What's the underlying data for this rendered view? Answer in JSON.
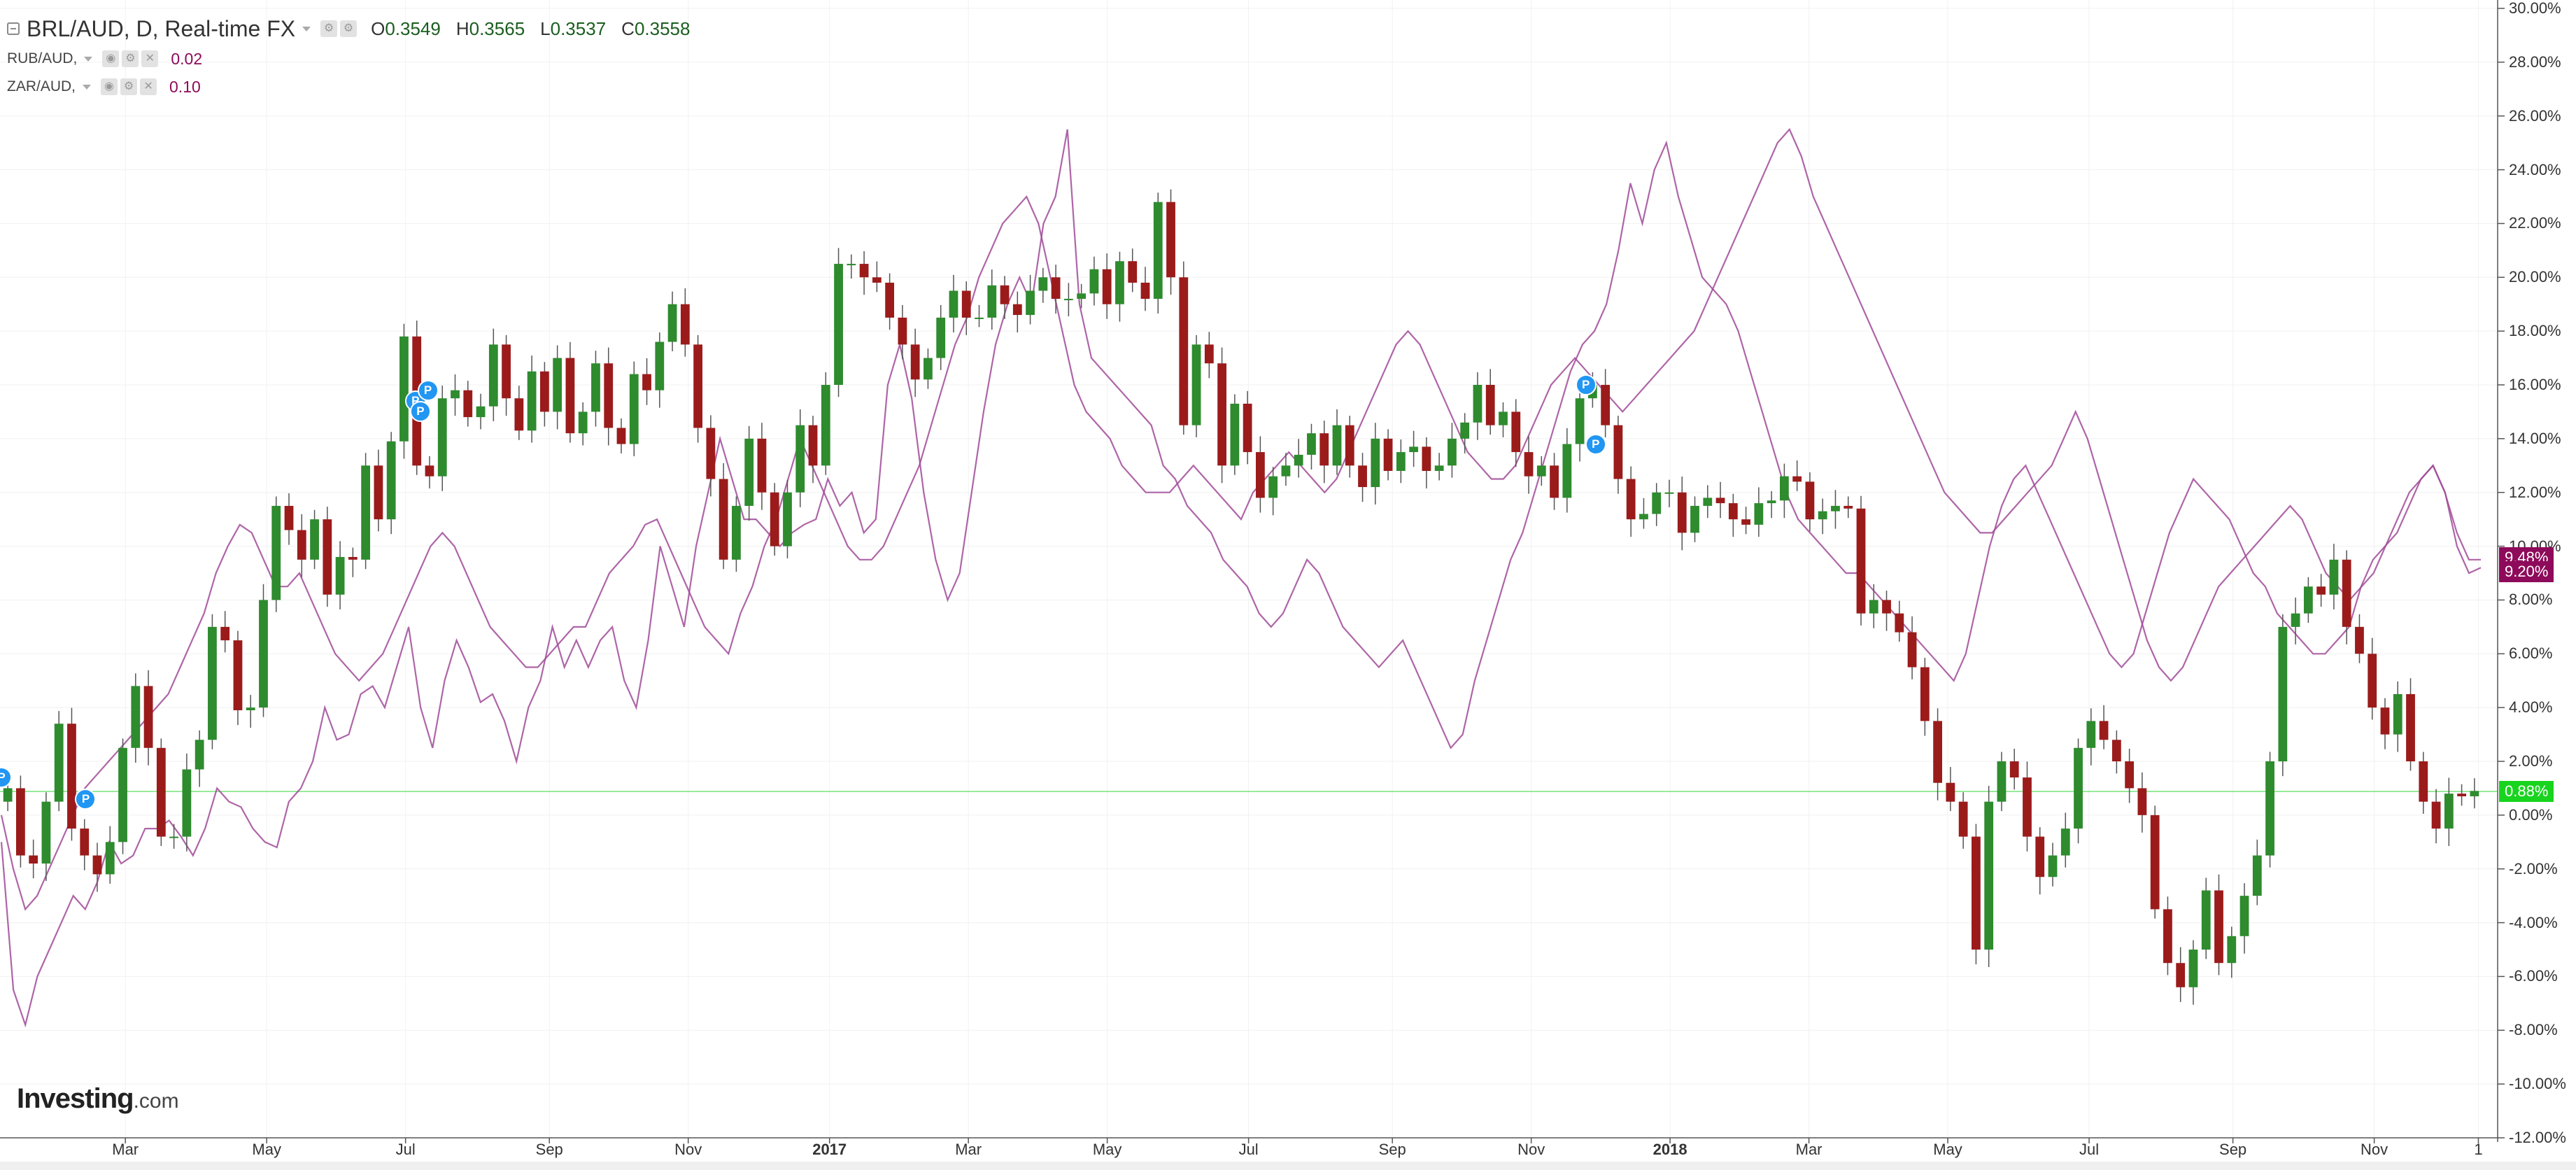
{
  "legend": {
    "main_title": "BRL/AUD, D, Real-time FX",
    "ohlc": {
      "o_label": "O",
      "o": "0.3549",
      "h_label": "H",
      "h": "0.3565",
      "l_label": "L",
      "l": "0.3537",
      "c_label": "C",
      "c": "0.3558"
    },
    "indicators": [
      {
        "name": "RUB/AUD,",
        "value": "0.02"
      },
      {
        "name": "ZAR/AUD,",
        "value": "0.10"
      }
    ]
  },
  "brand": {
    "name": "Investing",
    "domain": ".com"
  },
  "colors": {
    "up": "#2e8b2e",
    "down": "#9b1b1b",
    "compare": "#a04a98",
    "baseline": "#18d41e",
    "tag_purple": "#8e0a5a"
  },
  "chart_data": {
    "type": "line",
    "series": [
      {
        "name": "BRL/AUD",
        "style": "candlestick",
        "values": [
          1.0,
          -1.5,
          -1.8,
          0.5,
          3.4,
          -0.5,
          -1.5,
          -2.2,
          -1.0,
          2.5,
          4.8,
          2.5,
          -0.8,
          -0.8,
          1.7,
          2.8,
          7.0,
          6.5,
          3.9,
          4.0,
          8.0,
          11.5,
          10.6,
          9.5,
          11.0,
          8.2,
          9.6,
          9.5,
          13.0,
          11.0,
          13.9,
          17.8,
          13.0,
          12.6,
          15.5,
          15.8,
          14.8,
          15.2,
          17.5,
          15.5,
          14.3,
          16.5,
          15.0,
          17.0,
          14.2,
          15.0,
          16.8,
          14.4,
          13.8,
          16.4,
          15.8,
          17.6,
          19.0,
          17.5,
          14.4,
          12.5,
          9.5,
          11.5,
          14.0,
          12.0,
          10.0,
          12.0,
          14.5,
          13.0,
          16.0,
          20.5,
          20.5,
          20.0,
          19.8,
          18.5,
          17.5,
          16.2,
          17.0,
          18.5,
          19.5,
          18.5,
          18.5,
          19.7,
          19.0,
          18.6,
          19.5,
          20.0,
          19.2,
          19.2,
          19.4,
          20.3,
          19.0,
          20.6,
          19.8,
          19.2,
          22.8,
          20.0,
          14.5,
          17.5,
          16.8,
          13.0,
          15.3,
          13.5,
          11.8,
          12.6,
          13.0,
          13.4,
          14.2,
          13.0,
          14.5,
          13.0,
          12.2,
          14.0,
          12.8,
          13.5,
          13.7,
          12.8,
          13.0,
          14.0,
          14.6,
          16.0,
          14.5,
          15.0,
          13.5,
          12.6,
          13.0,
          11.8,
          13.8,
          15.5,
          16.0,
          14.5,
          12.5,
          11.0,
          11.2,
          12.0,
          12.0,
          10.5,
          11.5,
          11.8,
          11.6,
          11.0,
          10.8,
          11.6,
          11.7,
          12.6,
          12.4,
          11.0,
          11.3,
          11.5,
          11.4,
          7.5,
          8.0,
          7.5,
          6.8,
          5.5,
          3.5,
          1.2,
          0.5,
          -0.8,
          -5.0,
          0.5,
          2.0,
          1.4,
          -0.8,
          -2.3,
          -1.5,
          -0.5,
          2.5,
          3.5,
          2.8,
          2.0,
          1.0,
          0.0,
          -3.5,
          -5.5,
          -6.4,
          -5.0,
          -2.8,
          -5.5,
          -4.5,
          -3.0,
          -1.5,
          2.0,
          7.0,
          7.5,
          8.5,
          8.2,
          9.5,
          7.0,
          6.0,
          4.0,
          3.0,
          4.5,
          2.0,
          0.5,
          -0.5,
          0.8,
          0.7,
          0.9
        ]
      },
      {
        "name": "RUB/AUD",
        "style": "line",
        "values": [
          -1.0,
          -6.5,
          -7.8,
          -6.0,
          -5.0,
          -4.0,
          -3.0,
          -3.5,
          -2.5,
          -1.0,
          -1.8,
          -1.5,
          -0.5,
          -0.5,
          -0.2,
          -0.8,
          -1.5,
          -0.5,
          1.0,
          0.5,
          0.3,
          -0.5,
          -1.0,
          -1.2,
          0.5,
          1.0,
          2.0,
          4.0,
          2.8,
          3.0,
          4.5,
          4.8,
          4.0,
          5.5,
          7.0,
          4.0,
          2.5,
          5.0,
          6.5,
          5.5,
          4.2,
          4.5,
          3.5,
          2.0,
          4.0,
          5.0,
          7.0,
          5.5,
          6.5,
          5.5,
          6.5,
          7.0,
          5.0,
          4.0,
          6.5,
          10.0,
          8.5,
          7.0,
          10.0,
          12.0,
          14.0,
          12.5,
          11.0,
          11.0,
          10.5,
          10.0,
          10.5,
          10.8,
          11.0,
          12.5,
          11.5,
          12.0,
          10.5,
          11.0,
          16.0,
          17.5,
          15.5,
          12.0,
          9.5,
          8.0,
          9.0,
          12.0,
          15.0,
          17.5,
          19.0,
          20.0,
          19.0,
          22.0,
          23.0,
          25.5,
          19.0,
          17.0,
          16.5,
          16.0,
          15.5,
          15.0,
          14.5,
          13.0,
          12.5,
          11.5,
          11.0,
          10.5,
          9.5,
          9.0,
          8.5,
          7.5,
          7.0,
          7.5,
          8.5,
          9.5,
          9.0,
          8.0,
          7.0,
          6.5,
          6.0,
          5.5,
          6.0,
          6.5,
          5.5,
          4.5,
          3.5,
          2.5,
          3.0,
          5.0,
          6.5,
          8.0,
          9.5,
          10.5,
          12.0,
          13.5,
          15.0,
          16.5,
          17.5,
          18.0,
          19.0,
          21.0,
          23.5,
          22.0,
          24.0,
          25.0,
          23.0,
          21.5,
          20.0,
          19.5,
          19.0,
          18.0,
          16.5,
          15.0,
          13.5,
          12.0,
          11.0,
          10.5,
          10.0,
          9.5,
          9.0,
          9.0,
          8.5,
          8.0,
          7.5,
          7.0,
          6.5,
          6.0,
          5.5,
          5.0,
          6.0,
          8.0,
          10.0,
          11.5,
          12.5,
          13.0,
          12.0,
          11.0,
          10.0,
          9.0,
          8.0,
          7.0,
          6.0,
          5.5,
          6.0,
          7.5,
          9.0,
          10.5,
          11.5,
          12.5,
          12.0,
          11.5,
          11.0,
          10.0,
          9.0,
          8.5,
          7.5,
          7.0,
          6.5,
          6.0,
          6.0,
          6.5,
          7.0,
          8.5,
          9.5,
          10.0,
          10.5,
          11.5,
          12.5,
          13.0,
          12.0,
          10.5,
          9.5,
          9.5
        ]
      },
      {
        "name": "ZAR/AUD",
        "style": "line",
        "values": [
          0.0,
          -2.0,
          -3.5,
          -3.0,
          -2.0,
          -1.0,
          0.0,
          1.0,
          1.5,
          2.0,
          2.5,
          3.0,
          3.5,
          4.0,
          4.5,
          5.5,
          6.5,
          7.5,
          9.0,
          10.0,
          10.8,
          10.5,
          9.5,
          8.5,
          8.5,
          9.0,
          8.0,
          7.0,
          6.0,
          5.5,
          5.0,
          5.5,
          6.0,
          7.0,
          8.0,
          9.0,
          10.0,
          10.5,
          10.0,
          9.0,
          8.0,
          7.0,
          6.5,
          6.0,
          5.5,
          5.5,
          6.0,
          6.5,
          7.0,
          7.0,
          8.0,
          9.0,
          9.5,
          10.0,
          10.8,
          11.0,
          10.0,
          9.0,
          8.0,
          7.0,
          6.5,
          6.0,
          7.5,
          8.5,
          10.0,
          11.0,
          12.5,
          14.0,
          13.0,
          12.0,
          11.0,
          10.0,
          9.5,
          9.5,
          10.0,
          11.0,
          12.0,
          13.0,
          14.5,
          16.0,
          17.5,
          18.5,
          20.0,
          21.0,
          22.0,
          22.5,
          23.0,
          22.0,
          20.0,
          18.0,
          16.0,
          15.0,
          14.5,
          14.0,
          13.0,
          12.5,
          12.0,
          12.0,
          12.0,
          12.5,
          13.0,
          12.5,
          12.0,
          11.5,
          11.0,
          12.0,
          12.5,
          13.0,
          13.5,
          13.0,
          12.5,
          12.0,
          12.5,
          13.5,
          14.5,
          15.5,
          16.5,
          17.5,
          18.0,
          17.5,
          16.5,
          15.5,
          14.5,
          13.5,
          13.0,
          12.5,
          12.5,
          13.0,
          14.0,
          15.0,
          16.0,
          16.5,
          17.0,
          16.5,
          16.0,
          15.5,
          15.0,
          15.5,
          16.0,
          16.5,
          17.0,
          17.5,
          18.0,
          19.0,
          20.0,
          21.0,
          22.0,
          23.0,
          24.0,
          25.0,
          25.5,
          24.5,
          23.0,
          22.0,
          21.0,
          20.0,
          19.0,
          18.0,
          17.0,
          16.0,
          15.0,
          14.0,
          13.0,
          12.0,
          11.5,
          11.0,
          10.5,
          10.5,
          11.0,
          11.5,
          12.0,
          12.5,
          13.0,
          14.0,
          15.0,
          14.0,
          12.5,
          11.0,
          9.5,
          8.0,
          6.5,
          5.5,
          5.0,
          5.5,
          6.5,
          7.5,
          8.5,
          9.0,
          9.5,
          10.0,
          10.5,
          11.0,
          11.5,
          11.0,
          10.0,
          9.0,
          8.5,
          8.0,
          8.5,
          9.0,
          10.0,
          11.0,
          12.0,
          12.5,
          13.0,
          12.0,
          10.0,
          9.0,
          9.2
        ]
      }
    ],
    "x_labels": [
      {
        "text": "Mar",
        "pos": 0.05,
        "year": false
      },
      {
        "text": "May",
        "pos": 0.107,
        "year": false
      },
      {
        "text": "Jul",
        "pos": 0.163,
        "year": false
      },
      {
        "text": "Sep",
        "pos": 0.221,
        "year": false
      },
      {
        "text": "Nov",
        "pos": 0.277,
        "year": false
      },
      {
        "text": "2017",
        "pos": 0.334,
        "year": true
      },
      {
        "text": "Mar",
        "pos": 0.39,
        "year": false
      },
      {
        "text": "May",
        "pos": 0.446,
        "year": false
      },
      {
        "text": "Jul",
        "pos": 0.503,
        "year": false
      },
      {
        "text": "Sep",
        "pos": 0.561,
        "year": false
      },
      {
        "text": "Nov",
        "pos": 0.617,
        "year": false
      },
      {
        "text": "2018",
        "pos": 0.673,
        "year": true
      },
      {
        "text": "Mar",
        "pos": 0.729,
        "year": false
      },
      {
        "text": "May",
        "pos": 0.785,
        "year": false
      },
      {
        "text": "Jul",
        "pos": 0.842,
        "year": false
      },
      {
        "text": "Sep",
        "pos": 0.9,
        "year": false
      },
      {
        "text": "Nov",
        "pos": 0.957,
        "year": false
      },
      {
        "text": "1",
        "pos": 0.999,
        "year": false
      }
    ],
    "y_ticks": [
      "30.00%",
      "28.00%",
      "26.00%",
      "24.00%",
      "22.00%",
      "20.00%",
      "18.00%",
      "16.00%",
      "14.00%",
      "12.00%",
      "10.00%",
      "8.00%",
      "6.00%",
      "4.00%",
      "2.00%",
      "0.00%",
      "-2.00%",
      "-4.00%",
      "-6.00%",
      "-8.00%",
      "-10.00%",
      "-12.00%"
    ],
    "y_tick_values": [
      30,
      28,
      26,
      24,
      22,
      20,
      18,
      16,
      14,
      12,
      10,
      8,
      6,
      4,
      2,
      0,
      -2,
      -4,
      -6,
      -8,
      -10,
      -12
    ],
    "ylim": [
      -12,
      30
    ],
    "y_unit": "%",
    "grid": true,
    "baseline_value": 0.88,
    "price_tags": [
      {
        "text": "9.48%",
        "value": 9.48,
        "color": "purple"
      },
      {
        "text": "9.20%",
        "value": 9.2,
        "color": "purple"
      },
      {
        "text": "0.88%",
        "value": 0.88,
        "color": "green"
      }
    ],
    "event_markers": [
      {
        "label": "P",
        "t": 0.0,
        "value": 1.4
      },
      {
        "label": "P",
        "t": 0.034,
        "value": 0.6
      },
      {
        "label": "P",
        "t": 0.167,
        "value": 15.4
      },
      {
        "label": "P",
        "t": 0.172,
        "value": 15.8
      },
      {
        "label": "P",
        "t": 0.169,
        "value": 15.0
      },
      {
        "label": "P",
        "t": 0.639,
        "value": 16.0
      },
      {
        "label": "P",
        "t": 0.643,
        "value": 13.8
      }
    ]
  }
}
